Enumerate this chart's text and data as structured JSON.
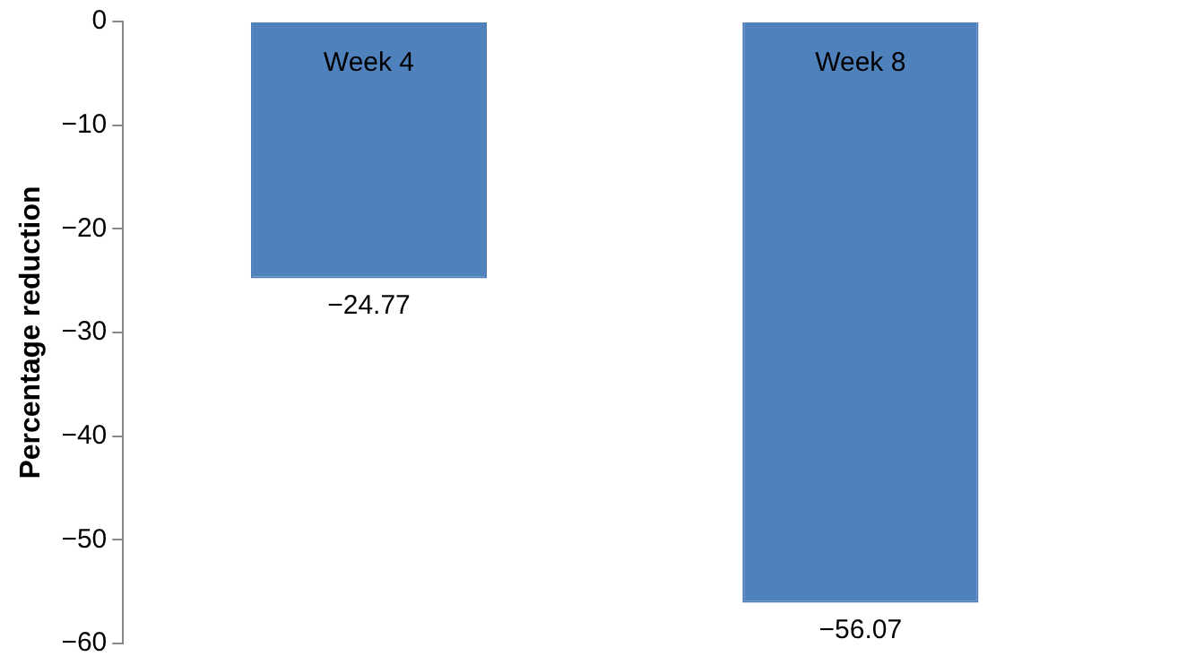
{
  "chart_data": {
    "type": "bar",
    "ylabel": "Percentage reduction",
    "categories": [
      "Week 4",
      "Week 8"
    ],
    "values": [
      -24.77,
      -56.07
    ],
    "color": "#4f81bd",
    "value_labels": [
      "−24.77",
      "−56.07"
    ],
    "ylim": [
      -60,
      0
    ],
    "yticks": [
      0,
      {
        "value": -10,
        "label": "−10"
      },
      {
        "value": -20,
        "label": "−20"
      },
      {
        "value": -30,
        "label": "−30"
      },
      {
        "value": -40,
        "label": "−40"
      },
      {
        "value": -50,
        "label": "−50"
      },
      {
        "value": -60,
        "label": "−60"
      }
    ],
    "grid": false,
    "legend": false
  }
}
